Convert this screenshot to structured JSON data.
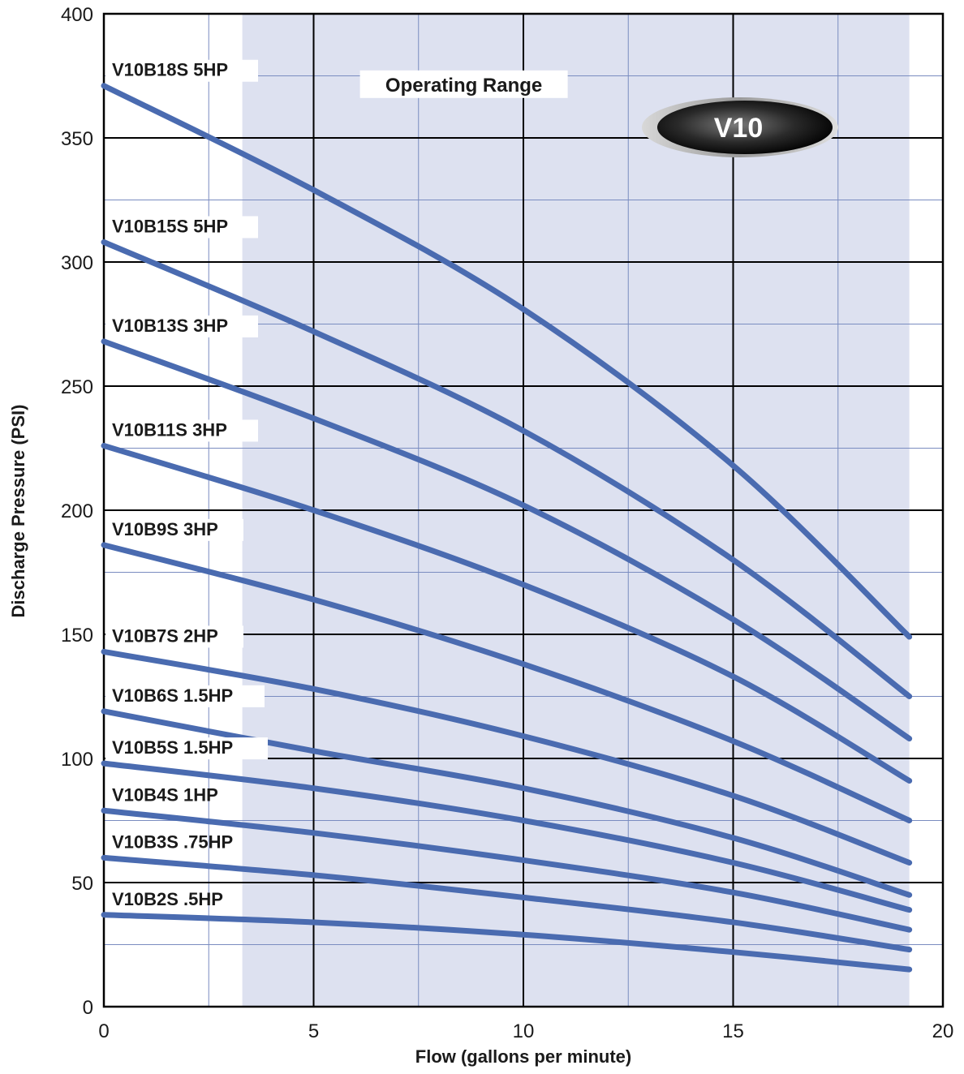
{
  "chart_data": {
    "type": "line",
    "xlabel": "Flow (gallons per minute)",
    "ylabel": "Discharge Pressure (PSI)",
    "xlim": [
      0,
      20
    ],
    "ylim": [
      0,
      400
    ],
    "x_ticks": [
      "0",
      "5",
      "10",
      "15",
      "20"
    ],
    "y_ticks": [
      "0",
      "50",
      "100",
      "150",
      "200",
      "250",
      "300",
      "350",
      "400"
    ],
    "grid": true,
    "operating_range": {
      "label": "Operating Range",
      "x": [
        3.3,
        19.2
      ]
    },
    "badge": "V10",
    "colors": {
      "series": "#4a6bb0",
      "operating_range": "#dde1f0",
      "grid_major": "#000000",
      "grid_minor": "#7a8cc0"
    },
    "series": [
      {
        "name": "V10B18S  5HP",
        "x": [
          0,
          5,
          10,
          15,
          19.2
        ],
        "y": [
          371,
          329,
          281,
          218,
          149
        ]
      },
      {
        "name": "V10B15S  5HP",
        "x": [
          0,
          5,
          10,
          15,
          19.2
        ],
        "y": [
          308,
          272,
          232,
          180,
          125
        ]
      },
      {
        "name": "V10B13S  3HP",
        "x": [
          0,
          5,
          10,
          15,
          19.2
        ],
        "y": [
          268,
          237,
          202,
          156,
          108
        ]
      },
      {
        "name": "V10B11S  3HP",
        "x": [
          0,
          5,
          10,
          15,
          19.2
        ],
        "y": [
          226,
          200,
          170,
          133,
          91
        ]
      },
      {
        "name": "V10B9S  3HP",
        "x": [
          0,
          5,
          10,
          15,
          19.2
        ],
        "y": [
          186,
          164,
          138,
          107,
          75
        ]
      },
      {
        "name": "V10B7S  2HP",
        "x": [
          0,
          5,
          10,
          15,
          19.2
        ],
        "y": [
          143,
          128,
          109,
          85,
          58
        ]
      },
      {
        "name": "V10B6S  1.5HP",
        "x": [
          0,
          5,
          10,
          15,
          19.2
        ],
        "y": [
          119,
          103,
          88,
          68,
          45
        ]
      },
      {
        "name": "V10B5S  1.5HP",
        "x": [
          0,
          5,
          10,
          15,
          19.2
        ],
        "y": [
          98,
          88,
          75,
          58,
          39
        ]
      },
      {
        "name": "V10B4S 1HP",
        "x": [
          0,
          5,
          10,
          15,
          19.2
        ],
        "y": [
          79,
          70,
          59,
          46,
          31
        ]
      },
      {
        "name": "V10B3S  .75HP",
        "x": [
          0,
          5,
          10,
          15,
          19.2
        ],
        "y": [
          60,
          53,
          44,
          34,
          23
        ]
      },
      {
        "name": "V10B2S  .5HP",
        "x": [
          0,
          5,
          10,
          15,
          19.2
        ],
        "y": [
          37,
          34,
          29,
          22,
          15
        ]
      }
    ]
  }
}
